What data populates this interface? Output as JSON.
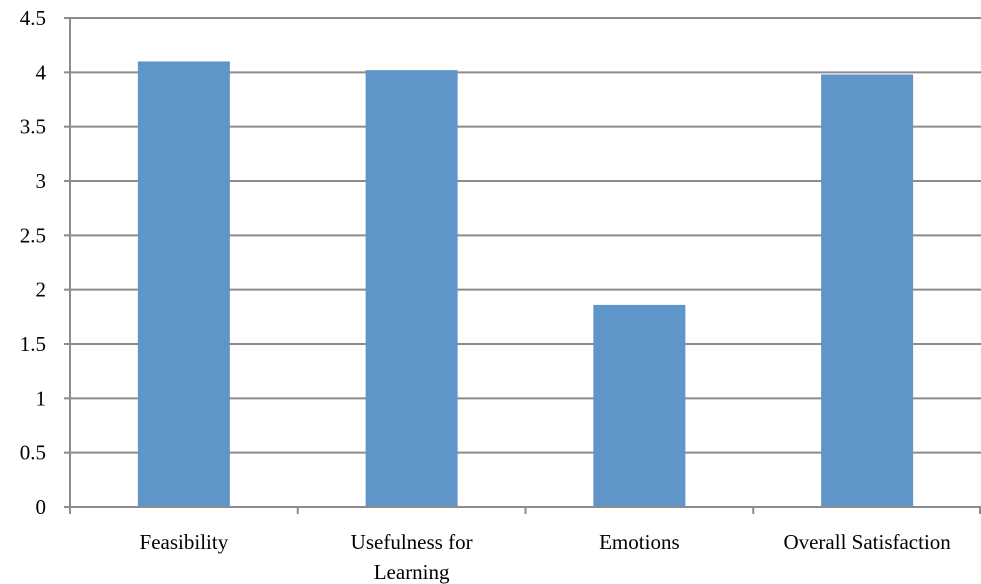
{
  "chart_data": {
    "type": "bar",
    "categories": [
      "Feasibility",
      "Usefulness for Learning",
      "Emotions",
      "Overall Satisfaction"
    ],
    "category_lines": [
      [
        "Feasibility"
      ],
      [
        "Usefulness for",
        "Learning"
      ],
      [
        "Emotions"
      ],
      [
        "Overall Satisfaction"
      ]
    ],
    "values": [
      4.1,
      4.02,
      1.86,
      3.98
    ],
    "ylim": [
      0,
      4.5
    ],
    "yticks": [
      0,
      0.5,
      1,
      1.5,
      2,
      2.5,
      3,
      3.5,
      4,
      4.5
    ],
    "ytick_labels": [
      "0",
      "0.5",
      "1",
      "1.5",
      "2",
      "2.5",
      "3",
      "3.5",
      "4",
      "4.5"
    ],
    "grid": true,
    "title": "",
    "xlabel": "",
    "ylabel": "",
    "bar_color": "#5f95c8"
  }
}
